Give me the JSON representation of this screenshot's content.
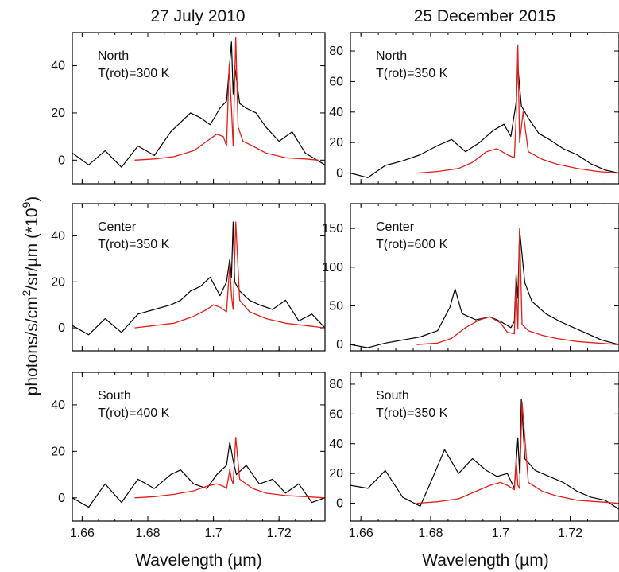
{
  "figure": {
    "ylabel": {
      "main": "photons/s/cm",
      "sup1": "2",
      "mid": "/sr/µm (*10",
      "sup2": "9",
      "end": ")"
    },
    "xlabel_left": "Wavelength (µm)",
    "xlabel_right": "Wavelength (µm)",
    "col_title_left": "27 July 2010",
    "col_title_right": "25 December 2015",
    "series_colors": {
      "observed": "#000000",
      "model": "#e0201b"
    }
  },
  "chart_data": [
    {
      "type": "line",
      "id": "p0",
      "column": "27 July 2010",
      "region": "North",
      "trot": "T(rot)=300 K",
      "xlim": [
        1.657,
        1.734
      ],
      "ylim": [
        -10,
        54
      ],
      "xticks": [
        1.66,
        1.68,
        1.7,
        1.72
      ],
      "xtick_labels": [
        "1.66",
        "1.68",
        "1.7",
        "1.72"
      ],
      "yticks": [
        0,
        20,
        40
      ],
      "ytick_labels": [
        "0",
        "20",
        "40"
      ],
      "observed": {
        "x": [
          1.657,
          1.662,
          1.667,
          1.672,
          1.677,
          1.682,
          1.687,
          1.69,
          1.693,
          1.696,
          1.699,
          1.702,
          1.704,
          1.7055,
          1.706,
          1.7065,
          1.708,
          1.71,
          1.713,
          1.716,
          1.72,
          1.724,
          1.728,
          1.734
        ],
        "y": [
          3,
          -2,
          4,
          -3,
          6,
          2,
          12,
          16,
          20,
          18,
          15,
          22,
          25,
          50,
          28,
          40,
          24,
          22,
          20,
          14,
          8,
          12,
          3,
          -2
        ]
      },
      "model": {
        "x": [
          1.676,
          1.682,
          1.688,
          1.694,
          1.698,
          1.701,
          1.703,
          1.704,
          1.7048,
          1.7055,
          1.706,
          1.7068,
          1.7075,
          1.709,
          1.712,
          1.716,
          1.722,
          1.728,
          1.732
        ],
        "y": [
          0,
          0.5,
          1.5,
          4,
          8,
          11,
          10,
          6,
          40,
          22,
          6,
          52,
          14,
          8,
          6,
          3,
          1,
          0.5,
          0
        ]
      }
    },
    {
      "type": "line",
      "id": "p1",
      "column": "25 December 2015",
      "region": "North",
      "trot": "T(rot)=350 K",
      "xlim": [
        1.657,
        1.734
      ],
      "ylim": [
        -7,
        92
      ],
      "xticks": [
        1.66,
        1.68,
        1.7,
        1.72
      ],
      "xtick_labels": [
        "1.66",
        "1.68",
        "1.7",
        "1.72"
      ],
      "yticks": [
        0,
        20,
        40,
        60,
        80
      ],
      "ytick_labels": [
        "0",
        "20",
        "40",
        "60",
        "80"
      ],
      "observed": {
        "x": [
          1.657,
          1.662,
          1.667,
          1.672,
          1.677,
          1.682,
          1.686,
          1.69,
          1.694,
          1.698,
          1.701,
          1.703,
          1.7045,
          1.705,
          1.706,
          1.708,
          1.711,
          1.714,
          1.718,
          1.722,
          1.726,
          1.73,
          1.734
        ],
        "y": [
          0,
          -3,
          5,
          8,
          12,
          18,
          22,
          14,
          20,
          28,
          32,
          24,
          46,
          70,
          44,
          36,
          26,
          22,
          16,
          12,
          6,
          2,
          0
        ]
      },
      "model": {
        "x": [
          1.676,
          1.682,
          1.688,
          1.692,
          1.696,
          1.699,
          1.702,
          1.704,
          1.7045,
          1.705,
          1.7055,
          1.7065,
          1.708,
          1.712,
          1.716,
          1.722,
          1.728,
          1.734
        ],
        "y": [
          0,
          1,
          3,
          7,
          14,
          16,
          12,
          10,
          36,
          84,
          20,
          40,
          14,
          9,
          6,
          3,
          1,
          0
        ]
      }
    },
    {
      "type": "line",
      "id": "p2",
      "column": "27 July 2010",
      "region": "Center",
      "trot": "T(rot)=350 K",
      "xlim": [
        1.657,
        1.734
      ],
      "ylim": [
        -10,
        54
      ],
      "xticks": [
        1.66,
        1.68,
        1.7,
        1.72
      ],
      "xtick_labels": [
        "1.66",
        "1.68",
        "1.7",
        "1.72"
      ],
      "yticks": [
        0,
        20,
        40
      ],
      "ytick_labels": [
        "0",
        "20",
        "40"
      ],
      "observed": {
        "x": [
          1.657,
          1.662,
          1.667,
          1.672,
          1.677,
          1.682,
          1.687,
          1.69,
          1.693,
          1.696,
          1.699,
          1.702,
          1.704,
          1.705,
          1.7055,
          1.706,
          1.7065,
          1.708,
          1.711,
          1.714,
          1.718,
          1.722,
          1.726,
          1.73,
          1.734
        ],
        "y": [
          1,
          -3,
          4,
          -2,
          6,
          8,
          10,
          12,
          16,
          18,
          22,
          14,
          20,
          30,
          22,
          46,
          20,
          16,
          12,
          10,
          8,
          12,
          3,
          6,
          0
        ]
      },
      "model": {
        "x": [
          1.676,
          1.682,
          1.688,
          1.694,
          1.698,
          1.7,
          1.702,
          1.704,
          1.705,
          1.7055,
          1.706,
          1.7068,
          1.708,
          1.711,
          1.716,
          1.722,
          1.728,
          1.734
        ],
        "y": [
          0,
          1,
          2,
          5,
          8,
          10,
          9,
          7,
          28,
          14,
          8,
          46,
          12,
          7,
          4,
          2,
          1,
          0
        ]
      }
    },
    {
      "type": "line",
      "id": "p3",
      "column": "25 December 2015",
      "region": "Center",
      "trot": "T(rot)=600 K",
      "xlim": [
        1.657,
        1.734
      ],
      "ylim": [
        -8,
        182
      ],
      "xticks": [
        1.66,
        1.68,
        1.7,
        1.72
      ],
      "xtick_labels": [
        "1.66",
        "1.68",
        "1.7",
        "1.72"
      ],
      "yticks": [
        0,
        50,
        100,
        150
      ],
      "ytick_labels": [
        "0",
        "50",
        "100",
        "150"
      ],
      "observed": {
        "x": [
          1.657,
          1.662,
          1.667,
          1.672,
          1.677,
          1.682,
          1.6855,
          1.687,
          1.689,
          1.693,
          1.697,
          1.7,
          1.703,
          1.704,
          1.7045,
          1.705,
          1.7055,
          1.707,
          1.709,
          1.713,
          1.717,
          1.721,
          1.725,
          1.729,
          1.734
        ],
        "y": [
          0,
          -4,
          2,
          6,
          10,
          18,
          48,
          72,
          40,
          32,
          36,
          30,
          22,
          30,
          90,
          60,
          148,
          80,
          56,
          40,
          30,
          22,
          14,
          6,
          0
        ]
      },
      "model": {
        "x": [
          1.676,
          1.682,
          1.686,
          1.69,
          1.694,
          1.697,
          1.7,
          1.702,
          1.704,
          1.7045,
          1.705,
          1.7055,
          1.7062,
          1.708,
          1.712,
          1.716,
          1.722,
          1.728,
          1.734
        ],
        "y": [
          0,
          2,
          8,
          22,
          32,
          36,
          28,
          16,
          14,
          86,
          20,
          150,
          26,
          18,
          12,
          8,
          4,
          2,
          0
        ]
      }
    },
    {
      "type": "line",
      "id": "p4",
      "column": "27 July 2010",
      "region": "South",
      "trot": "T(rot)=400 K",
      "xlim": [
        1.657,
        1.734
      ],
      "ylim": [
        -10,
        54
      ],
      "xticks": [
        1.66,
        1.68,
        1.7,
        1.72
      ],
      "xtick_labels": [
        "1.66",
        "1.68",
        "1.7",
        "1.72"
      ],
      "yticks": [
        0,
        20,
        40
      ],
      "ytick_labels": [
        "0",
        "20",
        "40"
      ],
      "observed": {
        "x": [
          1.657,
          1.662,
          1.667,
          1.672,
          1.677,
          1.682,
          1.687,
          1.69,
          1.694,
          1.698,
          1.701,
          1.704,
          1.705,
          1.706,
          1.707,
          1.71,
          1.714,
          1.718,
          1.722,
          1.726,
          1.73,
          1.734
        ],
        "y": [
          0,
          -4,
          6,
          -2,
          8,
          4,
          10,
          12,
          6,
          4,
          10,
          14,
          24,
          16,
          10,
          14,
          6,
          8,
          2,
          6,
          -2,
          0
        ]
      },
      "model": {
        "x": [
          1.676,
          1.682,
          1.688,
          1.694,
          1.698,
          1.701,
          1.703,
          1.704,
          1.705,
          1.7055,
          1.706,
          1.7068,
          1.708,
          1.712,
          1.716,
          1.722,
          1.728,
          1.734
        ],
        "y": [
          0,
          0.5,
          1.5,
          3,
          5,
          6,
          5,
          4,
          12,
          8,
          6,
          26,
          8,
          4,
          2,
          1,
          0.5,
          0
        ]
      }
    },
    {
      "type": "line",
      "id": "p5",
      "column": "25 December 2015",
      "region": "South",
      "trot": "T(rot)=350 K",
      "xlim": [
        1.657,
        1.734
      ],
      "ylim": [
        -12,
        88
      ],
      "xticks": [
        1.66,
        1.68,
        1.7,
        1.72
      ],
      "xtick_labels": [
        "1.66",
        "1.68",
        "1.7",
        "1.72"
      ],
      "yticks": [
        0,
        20,
        40,
        60,
        80
      ],
      "ytick_labels": [
        "0",
        "20",
        "40",
        "60",
        "80"
      ],
      "observed": {
        "x": [
          1.657,
          1.662,
          1.667,
          1.672,
          1.677,
          1.68,
          1.684,
          1.688,
          1.692,
          1.696,
          1.699,
          1.702,
          1.704,
          1.705,
          1.7055,
          1.706,
          1.707,
          1.71,
          1.714,
          1.718,
          1.722,
          1.726,
          1.73,
          1.734
        ],
        "y": [
          12,
          10,
          22,
          4,
          -2,
          14,
          36,
          20,
          30,
          22,
          18,
          20,
          10,
          44,
          20,
          70,
          30,
          22,
          18,
          14,
          8,
          4,
          2,
          -4
        ]
      },
      "model": {
        "x": [
          1.676,
          1.682,
          1.688,
          1.693,
          1.697,
          1.7,
          1.702,
          1.704,
          1.7045,
          1.705,
          1.7055,
          1.7062,
          1.708,
          1.712,
          1.716,
          1.722,
          1.728,
          1.734
        ],
        "y": [
          0,
          1,
          3,
          8,
          12,
          14,
          12,
          9,
          30,
          12,
          10,
          68,
          14,
          8,
          5,
          2,
          1,
          0
        ]
      }
    }
  ]
}
